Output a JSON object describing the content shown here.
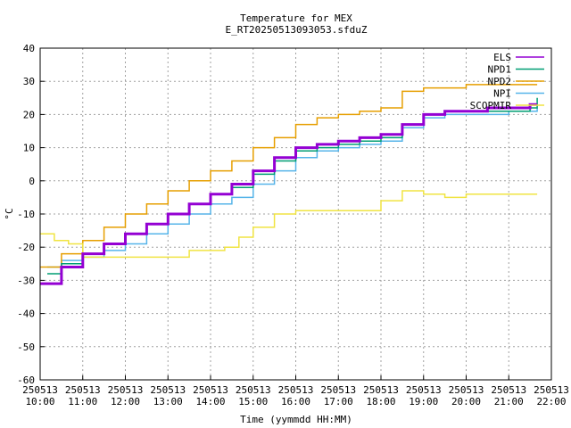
{
  "chart_data": {
    "type": "line",
    "title": "Temperature for MEX",
    "subtitle": "E_RT20250513093053.sfduZ",
    "xlabel": "Time (yymmdd HH:MM)",
    "ylabel": "°C",
    "xlim": [
      "250513 10:00",
      "250513 22:00"
    ],
    "ylim": [
      -60,
      40
    ],
    "y_ticks": [
      -60,
      -50,
      -40,
      -30,
      -20,
      -10,
      0,
      10,
      20,
      30,
      40
    ],
    "x_ticks": [
      {
        "date": "250513",
        "time": "10:00"
      },
      {
        "date": "250513",
        "time": "11:00"
      },
      {
        "date": "250513",
        "time": "12:00"
      },
      {
        "date": "250513",
        "time": "13:00"
      },
      {
        "date": "250513",
        "time": "14:00"
      },
      {
        "date": "250513",
        "time": "15:00"
      },
      {
        "date": "250513",
        "time": "16:00"
      },
      {
        "date": "250513",
        "time": "17:00"
      },
      {
        "date": "250513",
        "time": "18:00"
      },
      {
        "date": "250513",
        "time": "19:00"
      },
      {
        "date": "250513",
        "time": "20:00"
      },
      {
        "date": "250513",
        "time": "21:00"
      },
      {
        "date": "250513",
        "time": "22:00"
      }
    ],
    "grid": true,
    "legend_position": "top-right",
    "series": [
      {
        "name": "ELS",
        "color": "#9400d3",
        "x": [
          "10:00",
          "10:30",
          "11:00",
          "11:30",
          "12:00",
          "12:30",
          "13:00",
          "13:30",
          "14:00",
          "14:30",
          "15:00",
          "15:30",
          "16:00",
          "16:30",
          "17:00",
          "17:30",
          "18:00",
          "18:30",
          "19:00",
          "19:30",
          "20:00",
          "20:30",
          "21:00",
          "21:30",
          "21:40"
        ],
        "y": [
          -31,
          -26,
          -22,
          -19,
          -16,
          -13,
          -10,
          -7,
          -4,
          -1,
          3,
          7,
          10,
          11,
          12,
          13,
          14,
          17,
          20,
          21,
          21,
          22,
          22,
          23,
          23
        ]
      },
      {
        "name": "NPD1",
        "color": "#009e73",
        "x": [
          "10:10",
          "10:30",
          "11:00",
          "11:30",
          "12:00",
          "12:30",
          "13:00",
          "13:30",
          "14:00",
          "14:30",
          "15:00",
          "15:30",
          "16:00",
          "16:30",
          "17:00",
          "17:30",
          "18:00",
          "18:30",
          "19:00",
          "19:30",
          "20:00",
          "20:30",
          "21:00",
          "21:30",
          "21:40"
        ],
        "y": [
          -28,
          -25,
          -22,
          -19,
          -16,
          -13,
          -10,
          -7,
          -4,
          -2,
          2,
          6,
          9,
          10,
          11,
          12,
          13,
          17,
          20,
          21,
          21,
          21,
          21,
          22,
          25
        ]
      },
      {
        "name": "NPD2",
        "color": "#e69f00",
        "x": [
          "10:00",
          "10:30",
          "11:00",
          "11:30",
          "12:00",
          "12:30",
          "13:00",
          "13:30",
          "14:00",
          "14:30",
          "15:00",
          "15:30",
          "16:00",
          "16:30",
          "17:00",
          "17:30",
          "18:00",
          "18:30",
          "19:00",
          "19:30",
          "20:00",
          "20:30",
          "21:00",
          "21:30",
          "21:40"
        ],
        "y": [
          -26,
          -22,
          -18,
          -14,
          -10,
          -7,
          -3,
          0,
          3,
          6,
          10,
          13,
          17,
          19,
          20,
          21,
          22,
          27,
          28,
          28,
          29,
          29,
          29,
          29,
          29
        ]
      },
      {
        "name": "NPI",
        "color": "#56b4e9",
        "x": [
          "10:10",
          "10:30",
          "11:00",
          "11:30",
          "12:00",
          "12:30",
          "13:00",
          "13:30",
          "14:00",
          "14:30",
          "15:00",
          "15:30",
          "16:00",
          "16:30",
          "17:00",
          "17:30",
          "18:00",
          "18:30",
          "19:00",
          "19:30",
          "20:00",
          "20:30",
          "21:00",
          "21:30",
          "21:40"
        ],
        "y": [
          -26,
          -24,
          -23,
          -21,
          -19,
          -16,
          -13,
          -10,
          -7,
          -5,
          -1,
          3,
          7,
          9,
          10,
          11,
          12,
          16,
          19,
          20,
          20,
          20,
          21,
          21,
          22
        ]
      },
      {
        "name": "SCOPMIR",
        "color": "#f0e442",
        "x": [
          "10:00",
          "10:20",
          "10:40",
          "11:00",
          "11:30",
          "12:00",
          "12:30",
          "13:00",
          "13:30",
          "14:00",
          "14:20",
          "14:40",
          "15:00",
          "15:30",
          "16:00",
          "16:30",
          "17:00",
          "17:30",
          "18:00",
          "18:30",
          "19:00",
          "19:30",
          "20:00",
          "20:30",
          "21:00",
          "21:30",
          "21:40"
        ],
        "y": [
          -16,
          -18,
          -19,
          -23,
          -23,
          -23,
          -23,
          -23,
          -21,
          -21,
          -20,
          -17,
          -14,
          -10,
          -9,
          -9,
          -9,
          -9,
          -6,
          -3,
          -4,
          -5,
          -4,
          -4,
          -4,
          -4,
          -4
        ]
      }
    ]
  }
}
